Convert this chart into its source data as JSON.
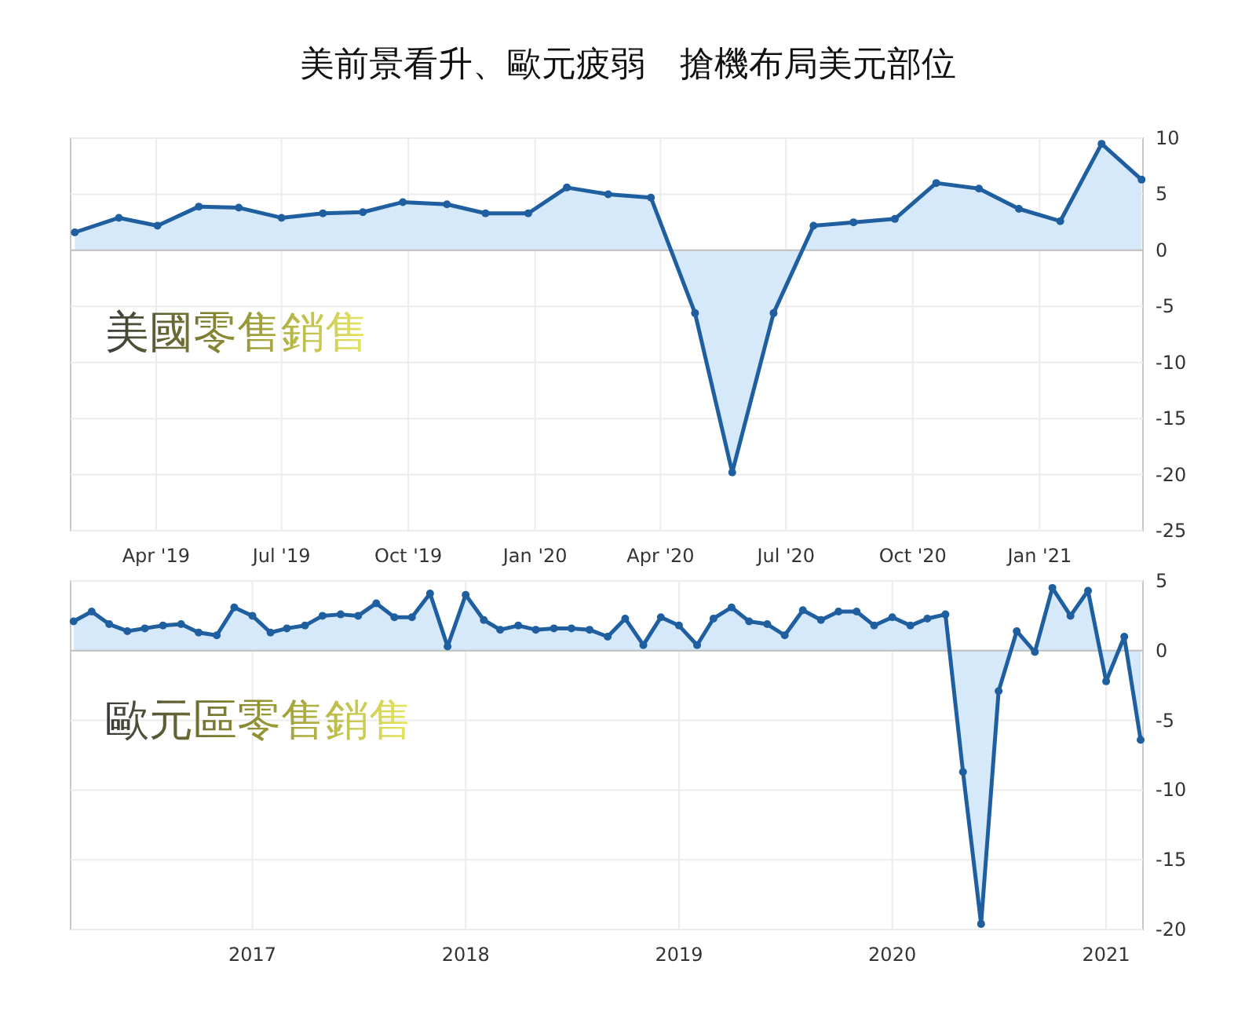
{
  "chart_data": [
    {
      "type": "area",
      "title": "美前景看升、歐元疲弱　搶機布局美元部位",
      "subtitle": "美國零售銷售",
      "x": [
        "2019-02-01",
        "2019-03-05",
        "2019-04-02",
        "2019-05-02",
        "2019-05-31",
        "2019-07-01",
        "2019-07-31",
        "2019-08-29",
        "2019-09-27",
        "2019-10-29",
        "2019-11-26",
        "2019-12-27",
        "2020-01-24",
        "2020-02-23",
        "2020-03-25",
        "2020-04-26",
        "2020-05-23",
        "2020-06-22",
        "2020-07-21",
        "2020-08-19",
        "2020-09-18",
        "2020-10-18",
        "2020-11-18",
        "2020-12-17",
        "2021-01-16",
        "2021-02-15",
        "2021-03-16"
      ],
      "series": [
        {
          "color": "#1f5fa0",
          "values": [
            1.6,
            2.9,
            2.2,
            3.9,
            3.8,
            2.9,
            3.3,
            3.4,
            4.3,
            4.1,
            3.3,
            3.3,
            5.6,
            5.0,
            4.7,
            -5.6,
            -19.8,
            -5.6,
            2.2,
            2.5,
            2.8,
            6.0,
            5.5,
            3.7,
            2.6,
            9.5,
            6.3
          ]
        }
      ],
      "xlim": [
        "2019-01-29",
        "2021-03-17"
      ],
      "xticks": [
        {
          "value": "2019-04-01",
          "label": "Apr '19"
        },
        {
          "value": "2019-07-01",
          "label": "Jul '19"
        },
        {
          "value": "2019-10-01",
          "label": "Oct '19"
        },
        {
          "value": "2020-01-01",
          "label": "Jan '20"
        },
        {
          "value": "2020-04-01",
          "label": "Apr '20"
        },
        {
          "value": "2020-07-01",
          "label": "Jul '20"
        },
        {
          "value": "2020-10-01",
          "label": "Oct '20"
        },
        {
          "value": "2021-01-01",
          "label": "Jan '21"
        }
      ],
      "ylim": [
        -25,
        10
      ],
      "yticks": [
        -25,
        -20,
        -15,
        -10,
        -5,
        0,
        5,
        10
      ],
      "grid": true,
      "marker": "circle"
    },
    {
      "type": "area",
      "subtitle": "歐元區零售銷售",
      "x": [
        "2016-03",
        "2016-04",
        "2016-05",
        "2016-06",
        "2016-07",
        "2016-08",
        "2016-09",
        "2016-10",
        "2016-11",
        "2016-12",
        "2017-01",
        "2017-02",
        "2017-03",
        "2017-04",
        "2017-05",
        "2017-06",
        "2017-07",
        "2017-08",
        "2017-09",
        "2017-10",
        "2017-11",
        "2017-12",
        "2018-01",
        "2018-02",
        "2018-03",
        "2018-04",
        "2018-05",
        "2018-06",
        "2018-07",
        "2018-08",
        "2018-09",
        "2018-10",
        "2018-11",
        "2018-12",
        "2019-01",
        "2019-02",
        "2019-03",
        "2019-04",
        "2019-05",
        "2019-06",
        "2019-07",
        "2019-08",
        "2019-09",
        "2019-10",
        "2019-11",
        "2019-12",
        "2020-01",
        "2020-02",
        "2020-03",
        "2020-04",
        "2020-05",
        "2020-06",
        "2020-07",
        "2020-08",
        "2020-09",
        "2020-10",
        "2020-11",
        "2020-12",
        "2021-01",
        "2021-02",
        "2021-03"
      ],
      "series": [
        {
          "color": "#1f5fa0",
          "values": [
            2.1,
            2.8,
            1.9,
            1.4,
            1.6,
            1.8,
            1.9,
            1.3,
            1.1,
            3.1,
            2.5,
            1.3,
            1.6,
            1.8,
            2.5,
            2.6,
            2.5,
            3.4,
            2.4,
            2.4,
            4.1,
            0.3,
            4.0,
            2.2,
            1.5,
            1.8,
            1.5,
            1.6,
            1.6,
            1.5,
            1.0,
            2.3,
            0.4,
            2.4,
            1.8,
            0.4,
            2.3,
            3.1,
            2.1,
            1.9,
            1.1,
            2.9,
            2.2,
            2.8,
            2.8,
            1.8,
            2.4,
            1.8,
            2.3,
            2.6,
            -8.7,
            -19.6,
            -2.9,
            1.4,
            -0.1,
            4.5,
            2.5,
            4.3,
            -2.2,
            1.0,
            -6.4
          ]
        }
      ],
      "xlim": [
        "2016-02-25",
        "2021-03-05"
      ],
      "xticks": [
        {
          "value": "2017-01-01",
          "label": "2017"
        },
        {
          "value": "2018-01-01",
          "label": "2018"
        },
        {
          "value": "2019-01-01",
          "label": "2019"
        },
        {
          "value": "2020-01-01",
          "label": "2020"
        },
        {
          "value": "2021-01-01",
          "label": "2021"
        }
      ],
      "ylim": [
        -20,
        5
      ],
      "yticks": [
        -20,
        -15,
        -10,
        -5,
        0,
        5
      ],
      "grid": true,
      "marker": "circle"
    }
  ]
}
